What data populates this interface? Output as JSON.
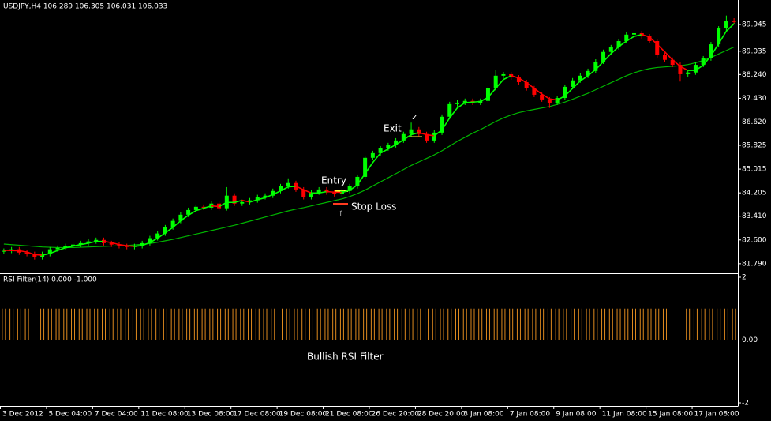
{
  "chart_data": [
    {
      "type": "candlestick",
      "title": "USDJPY,H4  106.289 106.305 106.031 106.033",
      "x": [
        "3 Dec 2012",
        null,
        null,
        null,
        null,
        null,
        "5 Dec 04:00",
        null,
        null,
        null,
        null,
        null,
        "7 Dec 04:00",
        null,
        null,
        null,
        null,
        null,
        "11 Dec 08:00",
        null,
        null,
        null,
        null,
        null,
        "13 Dec 08:00",
        null,
        null,
        null,
        null,
        null,
        "17 Dec 08:00",
        null,
        null,
        null,
        null,
        null,
        "19 Dec 08:00",
        null,
        null,
        null,
        null,
        null,
        "21 Dec 08:00",
        null,
        null,
        null,
        null,
        null,
        "26 Dec 20:00",
        null,
        null,
        null,
        null,
        null,
        "28 Dec 20:00",
        null,
        null,
        null,
        null,
        null,
        "3 Jan 08:00",
        null,
        null,
        null,
        null,
        null,
        "7 Jan 08:00",
        null,
        null,
        null,
        null,
        null,
        "9 Jan 08:00",
        null,
        null,
        null,
        null,
        null,
        "11 Jan 08:00",
        null,
        null,
        null,
        null,
        null,
        "15 Jan 08:00",
        null,
        null,
        null,
        null,
        null,
        "17 Jan 08:00",
        null,
        null,
        null,
        null,
        null
      ],
      "open": [
        82.2,
        82.23,
        82.28,
        82.17,
        82.12,
        82.01,
        82.12,
        82.28,
        82.33,
        82.39,
        82.44,
        82.49,
        82.55,
        82.6,
        82.49,
        82.44,
        82.39,
        82.36,
        82.39,
        82.49,
        82.66,
        82.82,
        83.03,
        83.25,
        83.46,
        83.62,
        83.73,
        83.7,
        83.84,
        83.68,
        84.11,
        83.84,
        83.89,
        83.95,
        84.06,
        84.11,
        84.27,
        84.43,
        84.54,
        84.32,
        84.06,
        84.22,
        84.32,
        84.22,
        84.16,
        84.27,
        84.43,
        84.75,
        85.4,
        85.56,
        85.72,
        85.83,
        85.99,
        86.21,
        86.37,
        86.21,
        85.99,
        86.26,
        86.8,
        87.23,
        87.28,
        87.34,
        87.28,
        87.34,
        87.77,
        88.2,
        88.25,
        88.14,
        87.98,
        87.77,
        87.55,
        87.39,
        87.28,
        87.44,
        87.82,
        88.04,
        88.2,
        88.36,
        88.68,
        89.01,
        89.17,
        89.38,
        89.6,
        89.65,
        89.54,
        89.38,
        88.9,
        88.74,
        88.57,
        88.25,
        88.31,
        88.57,
        88.79,
        89.27,
        89.81,
        90.08
      ],
      "high": [
        82.31,
        82.36,
        82.36,
        82.25,
        82.2,
        82.2,
        82.36,
        82.41,
        82.47,
        82.52,
        82.57,
        82.63,
        82.68,
        82.68,
        82.57,
        82.52,
        82.47,
        82.47,
        82.57,
        82.74,
        82.9,
        83.11,
        83.33,
        83.54,
        83.7,
        83.81,
        83.81,
        83.92,
        83.92,
        84.4,
        84.19,
        83.97,
        84.03,
        84.14,
        84.19,
        84.35,
        84.51,
        84.7,
        84.62,
        84.4,
        84.3,
        84.4,
        84.4,
        84.3,
        84.35,
        84.51,
        84.83,
        85.48,
        85.64,
        85.8,
        85.91,
        86.07,
        86.29,
        86.6,
        86.45,
        86.29,
        86.34,
        86.88,
        87.31,
        87.36,
        87.42,
        87.42,
        87.42,
        87.85,
        88.4,
        88.33,
        88.33,
        88.22,
        88.06,
        87.85,
        87.63,
        87.47,
        87.52,
        87.9,
        88.12,
        88.28,
        88.44,
        88.76,
        89.09,
        89.25,
        89.46,
        89.68,
        89.73,
        89.73,
        89.62,
        89.46,
        88.98,
        88.82,
        88.65,
        88.39,
        88.65,
        88.87,
        89.35,
        89.89,
        90.25,
        90.16
      ],
      "low": [
        82.12,
        82.15,
        82.09,
        82.04,
        81.93,
        81.93,
        82.04,
        82.2,
        82.25,
        82.31,
        82.36,
        82.41,
        82.47,
        82.41,
        82.36,
        82.31,
        82.28,
        82.28,
        82.31,
        82.41,
        82.58,
        82.74,
        82.95,
        83.17,
        83.38,
        83.54,
        83.62,
        83.62,
        83.6,
        83.6,
        83.76,
        83.76,
        83.81,
        83.87,
        83.98,
        84.03,
        84.19,
        84.35,
        84.24,
        83.98,
        83.98,
        84.14,
        84.14,
        84.08,
        84.08,
        84.19,
        84.35,
        84.67,
        85.32,
        85.48,
        85.64,
        85.75,
        85.91,
        86.13,
        86.13,
        85.91,
        85.91,
        86.18,
        86.72,
        87.15,
        87.2,
        87.2,
        87.2,
        87.26,
        87.69,
        88.12,
        88.06,
        87.9,
        87.69,
        87.47,
        87.31,
        87.1,
        87.2,
        87.36,
        87.74,
        87.96,
        88.12,
        88.28,
        88.6,
        88.93,
        89.09,
        89.3,
        89.52,
        89.46,
        89.3,
        88.82,
        88.66,
        88.49,
        88.0,
        88.17,
        88.23,
        88.49,
        88.71,
        89.19,
        89.73,
        89.95
      ],
      "close": [
        82.23,
        82.28,
        82.17,
        82.12,
        82.01,
        82.12,
        82.28,
        82.33,
        82.39,
        82.44,
        82.49,
        82.55,
        82.6,
        82.49,
        82.44,
        82.39,
        82.36,
        82.39,
        82.49,
        82.66,
        82.82,
        83.03,
        83.25,
        83.46,
        83.62,
        83.73,
        83.7,
        83.84,
        83.68,
        84.11,
        83.84,
        83.89,
        83.95,
        84.06,
        84.11,
        84.27,
        84.43,
        84.54,
        84.32,
        84.06,
        84.22,
        84.32,
        84.22,
        84.16,
        84.27,
        84.43,
        84.75,
        85.4,
        85.56,
        85.72,
        85.83,
        85.99,
        86.21,
        86.37,
        86.21,
        85.99,
        86.26,
        86.8,
        87.23,
        87.28,
        87.34,
        87.28,
        87.34,
        87.77,
        88.2,
        88.25,
        88.14,
        87.98,
        87.77,
        87.55,
        87.39,
        87.28,
        87.44,
        87.82,
        88.04,
        88.2,
        88.36,
        88.68,
        89.01,
        89.17,
        89.38,
        89.6,
        89.65,
        89.54,
        89.38,
        88.9,
        88.74,
        88.57,
        88.25,
        88.31,
        88.57,
        88.79,
        89.27,
        89.81,
        90.08,
        90.03
      ],
      "up_color": "#00ff00",
      "down_color": "#ff0000",
      "fast_ma": {
        "up_color": "#00ff00",
        "down_color": "#ff0000",
        "values": [
          82.25,
          82.24,
          82.23,
          82.19,
          82.1,
          82.08,
          82.14,
          82.24,
          82.33,
          82.39,
          82.44,
          82.49,
          82.55,
          82.55,
          82.51,
          82.44,
          82.4,
          82.38,
          82.41,
          82.51,
          82.66,
          82.84,
          83.03,
          83.25,
          83.44,
          83.6,
          83.68,
          83.76,
          83.74,
          83.88,
          83.88,
          83.95,
          83.89,
          83.97,
          84.04,
          84.15,
          84.27,
          84.41,
          84.43,
          84.31,
          84.2,
          84.2,
          84.25,
          84.23,
          84.22,
          84.29,
          84.48,
          84.86,
          85.24,
          85.56,
          85.7,
          85.85,
          86.01,
          86.19,
          86.26,
          86.19,
          86.15,
          86.35,
          86.76,
          87.1,
          87.28,
          87.3,
          87.32,
          87.46,
          87.77,
          88.07,
          88.2,
          88.12,
          87.96,
          87.77,
          87.57,
          87.41,
          87.37,
          87.51,
          87.77,
          88.02,
          88.2,
          88.41,
          88.68,
          88.95,
          89.19,
          89.38,
          89.54,
          89.6,
          89.52,
          89.27,
          89.01,
          88.74,
          88.52,
          88.38,
          88.38,
          88.56,
          88.88,
          89.29,
          89.72,
          89.97
        ]
      },
      "slow_ma": {
        "color": "#00b400",
        "values": [
          82.46,
          82.44,
          82.42,
          82.4,
          82.38,
          82.36,
          82.35,
          82.34,
          82.34,
          82.34,
          82.35,
          82.36,
          82.37,
          82.38,
          82.39,
          82.4,
          82.41,
          82.43,
          82.45,
          82.48,
          82.52,
          82.57,
          82.62,
          82.68,
          82.74,
          82.8,
          82.86,
          82.92,
          82.98,
          83.04,
          83.1,
          83.17,
          83.24,
          83.31,
          83.38,
          83.45,
          83.52,
          83.59,
          83.65,
          83.7,
          83.76,
          83.82,
          83.88,
          83.94,
          84.0,
          84.08,
          84.18,
          84.3,
          84.44,
          84.58,
          84.72,
          84.86,
          85.0,
          85.14,
          85.26,
          85.38,
          85.5,
          85.64,
          85.8,
          85.96,
          86.1,
          86.24,
          86.36,
          86.5,
          86.64,
          86.76,
          86.86,
          86.94,
          87.0,
          87.05,
          87.1,
          87.15,
          87.22,
          87.3,
          87.4,
          87.5,
          87.6,
          87.72,
          87.84,
          87.96,
          88.08,
          88.2,
          88.3,
          88.38,
          88.44,
          88.48,
          88.5,
          88.52,
          88.54,
          88.58,
          88.64,
          88.72,
          88.82,
          88.94,
          89.06,
          89.18
        ]
      },
      "ylim": [
        81.49,
        90.78
      ],
      "yticks": [
        89.945,
        89.035,
        {
          "value": 88.24,
          "label": "88.240"
        },
        {
          "value": 87.43,
          "label": "87.430"
        },
        {
          "value": 86.62,
          "label": "86.620"
        },
        85.825,
        85.015,
        84.205,
        {
          "value": 83.41,
          "label": "83.410"
        },
        {
          "value": 82.6,
          "label": "82.600"
        },
        {
          "value": 81.79,
          "label": "81.790"
        }
      ],
      "annotations": [
        {
          "text": "Entry",
          "color": "#ffff33"
        },
        {
          "text": "Exit",
          "color": "#33cc33"
        },
        {
          "text": "Stop Loss",
          "color": "#ff3b1f"
        },
        {
          "text": "⇧",
          "color": "#ff9900"
        },
        {
          "text": "✓",
          "color": "#ffcc00"
        }
      ]
    },
    {
      "type": "bar",
      "title": "RSI Filter(14) 0.000 -1.000",
      "color": "#e08a1e",
      "values": [
        1,
        1,
        1,
        1,
        0,
        1,
        1,
        1,
        1,
        1,
        1,
        1,
        1,
        1,
        1,
        1,
        1,
        1,
        1,
        1,
        1,
        1,
        1,
        1,
        1,
        1,
        1,
        1,
        1,
        1,
        1,
        1,
        1,
        1,
        1,
        1,
        1,
        1,
        1,
        1,
        1,
        1,
        1,
        1,
        1,
        1,
        1,
        1,
        1,
        1,
        1,
        1,
        1,
        1,
        1,
        1,
        1,
        1,
        1,
        1,
        1,
        1,
        1,
        1,
        1,
        1,
        1,
        1,
        1,
        1,
        1,
        1,
        1,
        1,
        1,
        1,
        1,
        1,
        1,
        1,
        1,
        1,
        1,
        1,
        1,
        1,
        1,
        0,
        0,
        1,
        1,
        1,
        1,
        1,
        1,
        1
      ],
      "ylim": [
        -2.1,
        2.1
      ],
      "yticks": [
        2,
        {
          "value": 0,
          "label": "0.00"
        },
        -2
      ],
      "annotation": {
        "text": "Bullish RSI Filter",
        "color": "#ffcc00"
      }
    }
  ]
}
